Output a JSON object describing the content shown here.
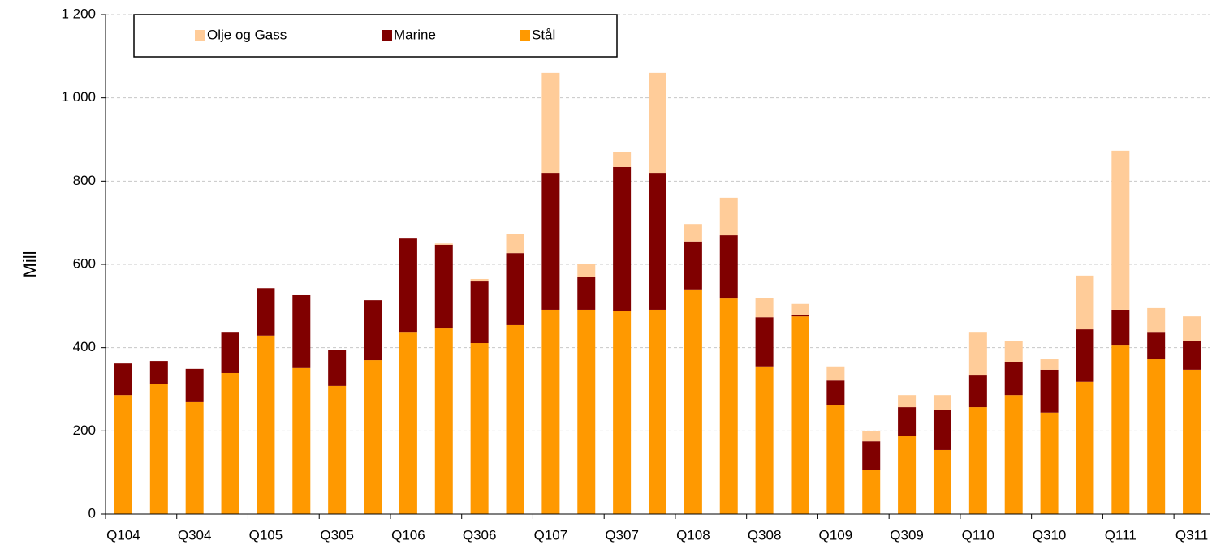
{
  "chart_data": {
    "type": "stacked_bar",
    "y_label": "Mill",
    "categories": [
      "Q104",
      null,
      "Q304",
      null,
      "Q105",
      null,
      "Q305",
      null,
      "Q106",
      null,
      "Q306",
      null,
      "Q107",
      null,
      "Q307",
      null,
      "Q108",
      null,
      "Q308",
      null,
      "Q109",
      null,
      "Q309",
      null,
      "Q110",
      null,
      "Q310",
      null,
      "Q111",
      null,
      "Q311"
    ],
    "series": [
      {
        "name": "Stål",
        "color": "#ff9900",
        "values": [
          286,
          312,
          269,
          339,
          429,
          351,
          308,
          370,
          436,
          446,
          411,
          454,
          491,
          491,
          487,
          491,
          540,
          518,
          355,
          475,
          261,
          107,
          187,
          154,
          257,
          286,
          244,
          318,
          405,
          372,
          347
        ]
      },
      {
        "name": "Marine",
        "color": "#800000",
        "values": [
          76,
          56,
          80,
          97,
          114,
          175,
          86,
          144,
          226,
          201,
          148,
          173,
          329,
          78,
          347,
          329,
          115,
          152,
          118,
          4,
          60,
          68,
          70,
          97,
          76,
          80,
          103,
          126,
          86,
          64,
          68
        ]
      },
      {
        "name": "Olje og Gass",
        "color": "#ffcc99",
        "values": [
          0,
          0,
          0,
          0,
          0,
          0,
          0,
          0,
          0,
          3,
          6,
          47,
          240,
          31,
          35,
          240,
          42,
          90,
          47,
          26,
          34,
          25,
          29,
          35,
          103,
          49,
          25,
          129,
          382,
          59,
          60
        ]
      }
    ],
    "ylim": [
      0,
      1200
    ],
    "yticks": [
      0,
      200,
      400,
      600,
      800,
      {
        "value": 1000,
        "label": "1 000"
      },
      {
        "value": 1200,
        "label": "1 200"
      }
    ],
    "grid": true
  }
}
